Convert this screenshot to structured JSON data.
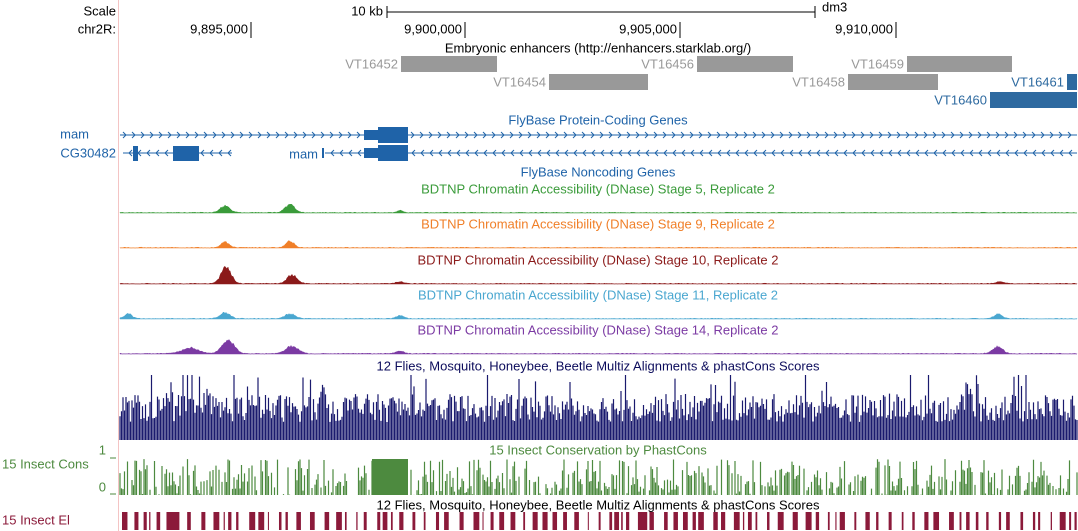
{
  "header": {
    "scale_label": "Scale",
    "scale_bar_label": "10 kb",
    "assembly": "dm3",
    "chrom_label": "chr2R:",
    "positions": [
      "9,895,000",
      "9,900,000",
      "9,905,000",
      "9,910,000"
    ]
  },
  "tracks": {
    "enhancers": {
      "title": "Embryonic enhancers (http://enhancers.starklab.org/)",
      "items": [
        "VT16452",
        "VT16454",
        "VT16456",
        "VT16458",
        "VT16459",
        "VT16461",
        "VT16460"
      ]
    },
    "genes": {
      "title": "FlyBase Protein-Coding Genes",
      "labels": [
        "mam",
        "CG30482",
        "mam"
      ]
    },
    "noncoding": {
      "title": "FlyBase Noncoding Genes"
    },
    "dnase": [
      {
        "title": "BDTNP Chromatin Accessibility (DNase) Stage 5, Replicate 2"
      },
      {
        "title": "BDTNP Chromatin Accessibility (DNase) Stage 9, Replicate 2"
      },
      {
        "title": "BDTNP Chromatin Accessibility (DNase) Stage 10, Replicate 2"
      },
      {
        "title": "BDTNP Chromatin Accessibility (DNase) Stage 11, Replicate 2"
      },
      {
        "title": "BDTNP Chromatin Accessibility (DNase) Stage 14, Replicate 2"
      }
    ],
    "multiz": {
      "title": "12 Flies, Mosquito, Honeybee, Beetle Multiz Alignments & phastCons Scores"
    },
    "cons": {
      "title": "15 Insect Conservation by PhastCons",
      "label": "15 Insect Cons",
      "axis_max": "1",
      "axis_min": "0"
    },
    "elements": {
      "title": "12 Flies, Mosquito, Honeybee, Beetle Multiz Alignments & phastCons Scores",
      "label": "15 Insect El"
    }
  }
}
